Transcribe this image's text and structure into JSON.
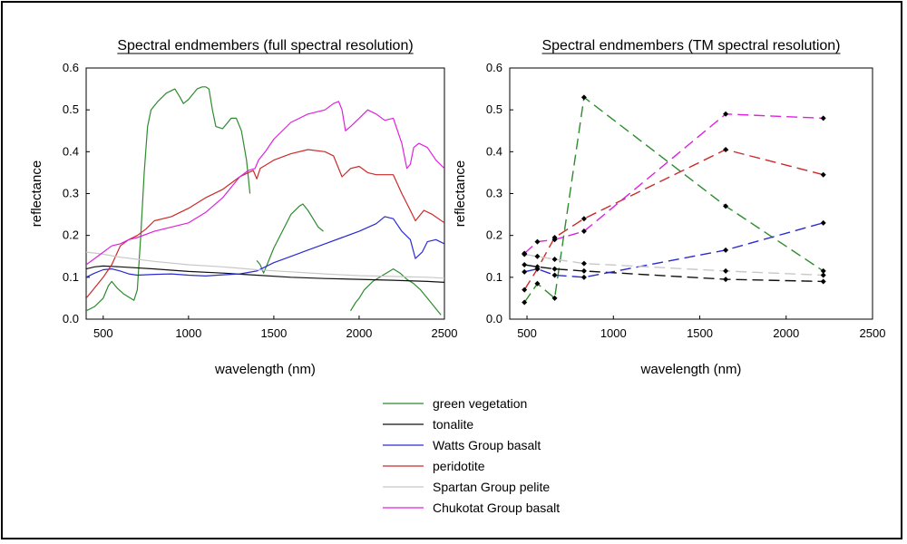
{
  "figure": {
    "legend_items": [
      {
        "name": "green vegetation",
        "color": "#2e8b2e"
      },
      {
        "name": "tonalite",
        "color": "#111111"
      },
      {
        "name": "Watts Group basalt",
        "color": "#2a2ad0"
      },
      {
        "name": "peridotite",
        "color": "#cc2a2a"
      },
      {
        "name": "Spartan Group pelite",
        "color": "#c8c8c8"
      },
      {
        "name": "Chukotat Group basalt",
        "color": "#dd22dd"
      }
    ]
  },
  "chart_data": [
    {
      "type": "line",
      "title": "Spectral endmembers (full spectral resolution)",
      "xlabel": "wavelength (nm)",
      "ylabel": "reflectance",
      "xlim": [
        400,
        2500
      ],
      "ylim": [
        0,
        0.6
      ],
      "xticks": [
        500,
        1000,
        1500,
        2000,
        2500
      ],
      "xtick_labels": [
        "500",
        "1000",
        "1500",
        "2000",
        "2500"
      ],
      "yticks": [
        0,
        0.1,
        0.2,
        0.3,
        0.4,
        0.5,
        0.6
      ],
      "ytick_labels": [
        "0.0",
        "0.1",
        "0.2",
        "0.3",
        "0.4",
        "0.5",
        "0.6"
      ],
      "series": [
        {
          "name": "green vegetation",
          "color": "#2e8b2e",
          "segments": [
            [
              [
                400,
                0.02
              ],
              [
                450,
                0.03
              ],
              [
                500,
                0.05
              ],
              [
                530,
                0.08
              ],
              [
                550,
                0.09
              ],
              [
                580,
                0.075
              ],
              [
                620,
                0.06
              ],
              [
                660,
                0.05
              ],
              [
                680,
                0.045
              ],
              [
                700,
                0.07
              ],
              [
                720,
                0.2
              ],
              [
                740,
                0.35
              ],
              [
                760,
                0.46
              ],
              [
                780,
                0.5
              ],
              [
                820,
                0.52
              ],
              [
                870,
                0.54
              ],
              [
                920,
                0.55
              ],
              [
                950,
                0.53
              ],
              [
                970,
                0.515
              ],
              [
                1000,
                0.525
              ],
              [
                1050,
                0.55
              ],
              [
                1080,
                0.555
              ],
              [
                1100,
                0.555
              ],
              [
                1120,
                0.55
              ],
              [
                1140,
                0.5
              ],
              [
                1160,
                0.46
              ],
              [
                1200,
                0.455
              ],
              [
                1250,
                0.48
              ],
              [
                1280,
                0.48
              ],
              [
                1310,
                0.45
              ],
              [
                1340,
                0.38
              ],
              [
                1360,
                0.3
              ]
            ],
            [
              [
                1400,
                0.14
              ],
              [
                1420,
                0.13
              ],
              [
                1440,
                0.11
              ],
              [
                1460,
                0.13
              ],
              [
                1500,
                0.17
              ],
              [
                1550,
                0.21
              ],
              [
                1600,
                0.25
              ],
              [
                1650,
                0.27
              ],
              [
                1670,
                0.275
              ],
              [
                1700,
                0.26
              ],
              [
                1730,
                0.24
              ],
              [
                1760,
                0.22
              ],
              [
                1790,
                0.21
              ]
            ],
            [
              [
                1950,
                0.02
              ],
              [
                1980,
                0.04
              ],
              [
                2000,
                0.05
              ],
              [
                2030,
                0.07
              ],
              [
                2080,
                0.09
              ],
              [
                2120,
                0.1
              ],
              [
                2160,
                0.11
              ],
              [
                2200,
                0.12
              ],
              [
                2240,
                0.11
              ],
              [
                2280,
                0.095
              ],
              [
                2320,
                0.085
              ],
              [
                2360,
                0.07
              ],
              [
                2400,
                0.05
              ],
              [
                2440,
                0.03
              ],
              [
                2480,
                0.01
              ]
            ]
          ]
        },
        {
          "name": "tonalite",
          "color": "#111111",
          "segments": [
            [
              [
                400,
                0.12
              ],
              [
                450,
                0.125
              ],
              [
                500,
                0.127
              ],
              [
                600,
                0.125
              ],
              [
                800,
                0.12
              ],
              [
                1000,
                0.114
              ],
              [
                1200,
                0.11
              ],
              [
                1400,
                0.105
              ],
              [
                1600,
                0.1
              ],
              [
                1800,
                0.097
              ],
              [
                2000,
                0.095
              ],
              [
                2200,
                0.093
              ],
              [
                2400,
                0.09
              ],
              [
                2500,
                0.088
              ]
            ]
          ]
        },
        {
          "name": "Watts Group basalt",
          "color": "#2a2ad0",
          "segments": [
            [
              [
                400,
                0.1
              ],
              [
                450,
                0.11
              ],
              [
                500,
                0.118
              ],
              [
                550,
                0.12
              ],
              [
                600,
                0.115
              ],
              [
                650,
                0.108
              ],
              [
                700,
                0.105
              ],
              [
                800,
                0.107
              ],
              [
                900,
                0.108
              ],
              [
                1000,
                0.105
              ],
              [
                1100,
                0.103
              ],
              [
                1200,
                0.106
              ],
              [
                1300,
                0.108
              ],
              [
                1400,
                0.115
              ],
              [
                1450,
                0.125
              ],
              [
                1500,
                0.135
              ],
              [
                1600,
                0.15
              ],
              [
                1700,
                0.165
              ],
              [
                1800,
                0.18
              ],
              [
                1900,
                0.195
              ],
              [
                2000,
                0.21
              ],
              [
                2100,
                0.228
              ],
              [
                2150,
                0.245
              ],
              [
                2200,
                0.24
              ],
              [
                2250,
                0.21
              ],
              [
                2300,
                0.19
              ],
              [
                2330,
                0.145
              ],
              [
                2370,
                0.16
              ],
              [
                2400,
                0.185
              ],
              [
                2450,
                0.19
              ],
              [
                2500,
                0.18
              ]
            ]
          ]
        },
        {
          "name": "peridotite",
          "color": "#cc2a2a",
          "segments": [
            [
              [
                400,
                0.05
              ],
              [
                420,
                0.06
              ],
              [
                450,
                0.075
              ],
              [
                500,
                0.1
              ],
              [
                550,
                0.13
              ],
              [
                600,
                0.175
              ],
              [
                650,
                0.19
              ],
              [
                700,
                0.2
              ],
              [
                750,
                0.215
              ],
              [
                800,
                0.235
              ],
              [
                900,
                0.245
              ],
              [
                1000,
                0.265
              ],
              [
                1100,
                0.29
              ],
              [
                1200,
                0.31
              ],
              [
                1300,
                0.34
              ],
              [
                1350,
                0.35
              ],
              [
                1380,
                0.355
              ],
              [
                1400,
                0.335
              ],
              [
                1420,
                0.36
              ],
              [
                1500,
                0.38
              ],
              [
                1600,
                0.395
              ],
              [
                1700,
                0.405
              ],
              [
                1800,
                0.4
              ],
              [
                1850,
                0.39
              ],
              [
                1900,
                0.34
              ],
              [
                1950,
                0.36
              ],
              [
                2000,
                0.365
              ],
              [
                2050,
                0.35
              ],
              [
                2100,
                0.345
              ],
              [
                2200,
                0.345
              ],
              [
                2250,
                0.3
              ],
              [
                2300,
                0.26
              ],
              [
                2330,
                0.235
              ],
              [
                2380,
                0.26
              ],
              [
                2430,
                0.25
              ],
              [
                2500,
                0.23
              ]
            ]
          ]
        },
        {
          "name": "Spartan Group pelite",
          "color": "#c8c8c8",
          "segments": [
            [
              [
                400,
                0.16
              ],
              [
                450,
                0.158
              ],
              [
                500,
                0.155
              ],
              [
                600,
                0.148
              ],
              [
                700,
                0.143
              ],
              [
                800,
                0.138
              ],
              [
                1000,
                0.13
              ],
              [
                1200,
                0.125
              ],
              [
                1400,
                0.118
              ],
              [
                1600,
                0.113
              ],
              [
                1800,
                0.108
              ],
              [
                2000,
                0.104
              ],
              [
                2200,
                0.102
              ],
              [
                2400,
                0.1
              ],
              [
                2500,
                0.098
              ]
            ]
          ]
        },
        {
          "name": "Chukotat Group basalt",
          "color": "#dd22dd",
          "segments": [
            [
              [
                400,
                0.13
              ],
              [
                450,
                0.145
              ],
              [
                500,
                0.16
              ],
              [
                550,
                0.175
              ],
              [
                600,
                0.18
              ],
              [
                650,
                0.19
              ],
              [
                700,
                0.195
              ],
              [
                800,
                0.21
              ],
              [
                900,
                0.22
              ],
              [
                1000,
                0.23
              ],
              [
                1100,
                0.255
              ],
              [
                1200,
                0.29
              ],
              [
                1300,
                0.34
              ],
              [
                1350,
                0.355
              ],
              [
                1390,
                0.36
              ],
              [
                1410,
                0.38
              ],
              [
                1450,
                0.4
              ],
              [
                1500,
                0.43
              ],
              [
                1600,
                0.47
              ],
              [
                1700,
                0.49
              ],
              [
                1800,
                0.5
              ],
              [
                1850,
                0.515
              ],
              [
                1880,
                0.52
              ],
              [
                1900,
                0.5
              ],
              [
                1920,
                0.45
              ],
              [
                1950,
                0.46
              ],
              [
                2000,
                0.48
              ],
              [
                2050,
                0.5
              ],
              [
                2100,
                0.49
              ],
              [
                2150,
                0.475
              ],
              [
                2200,
                0.48
              ],
              [
                2250,
                0.42
              ],
              [
                2280,
                0.36
              ],
              [
                2300,
                0.37
              ],
              [
                2320,
                0.41
              ],
              [
                2350,
                0.42
              ],
              [
                2400,
                0.41
              ],
              [
                2450,
                0.38
              ],
              [
                2500,
                0.36
              ]
            ]
          ]
        }
      ]
    },
    {
      "type": "line",
      "title": "Spectral endmembers (TM spectral resolution)",
      "xlabel": "wavelength (nm)",
      "ylabel": "reflectance",
      "xlim": [
        400,
        2500
      ],
      "ylim": [
        0,
        0.6
      ],
      "xticks": [
        500,
        1000,
        1500,
        2000,
        2500
      ],
      "xtick_labels": [
        "500",
        "1000",
        "1500",
        "2000",
        "2500"
      ],
      "yticks": [
        0,
        0.1,
        0.2,
        0.3,
        0.4,
        0.5,
        0.6
      ],
      "ytick_labels": [
        "0.0",
        "0.1",
        "0.2",
        "0.3",
        "0.4",
        "0.5",
        "0.6"
      ],
      "x": [
        485,
        560,
        660,
        830,
        1650,
        2215
      ],
      "series": [
        {
          "name": "green vegetation",
          "color": "#2e8b2e",
          "values": [
            0.04,
            0.085,
            0.05,
            0.53,
            0.27,
            0.115
          ]
        },
        {
          "name": "tonalite",
          "color": "#111111",
          "values": [
            0.13,
            0.125,
            0.12,
            0.115,
            0.095,
            0.09
          ]
        },
        {
          "name": "Watts Group basalt",
          "color": "#2a2ad0",
          "values": [
            0.113,
            0.12,
            0.105,
            0.1,
            0.165,
            0.23
          ]
        },
        {
          "name": "peridotite",
          "color": "#cc2a2a",
          "values": [
            0.07,
            0.12,
            0.195,
            0.24,
            0.405,
            0.345
          ]
        },
        {
          "name": "Spartan Group pelite",
          "color": "#c8c8c8",
          "values": [
            0.155,
            0.15,
            0.143,
            0.133,
            0.115,
            0.105
          ]
        },
        {
          "name": "Chukotat Group basalt",
          "color": "#dd22dd",
          "values": [
            0.157,
            0.185,
            0.19,
            0.21,
            0.49,
            0.48
          ]
        }
      ]
    }
  ]
}
